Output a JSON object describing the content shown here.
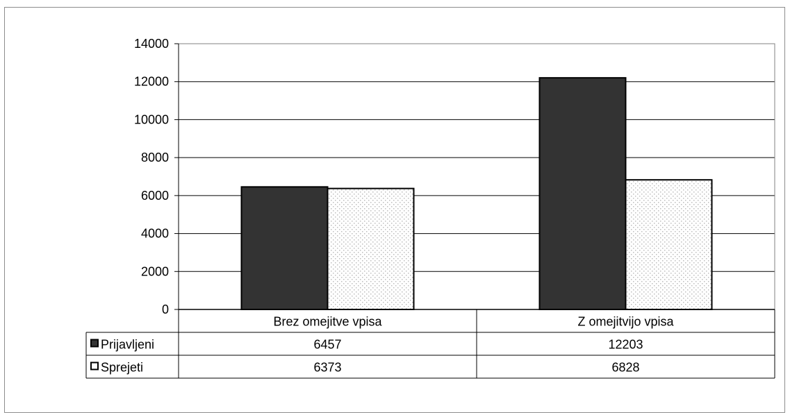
{
  "chart_data": {
    "type": "bar",
    "title": "",
    "xlabel": "",
    "ylabel": "",
    "ylim": [
      0,
      14000
    ],
    "y_ticks": [
      "0",
      "2000",
      "4000",
      "6000",
      "8000",
      "10000",
      "12000",
      "14000"
    ],
    "categories": [
      "Brez omejitve vpisa",
      "Z omejitvijo vpisa"
    ],
    "series": [
      {
        "name": "Prijavljeni",
        "values": [
          6457,
          12203
        ],
        "value_labels": [
          "6457",
          "12203"
        ],
        "color": "#333333",
        "pattern": "solid"
      },
      {
        "name": "Sprejeti",
        "values": [
          6373,
          6828
        ],
        "value_labels": [
          "6373",
          "6828"
        ],
        "color": "#ffffff",
        "pattern": "dotted"
      }
    ],
    "grid": true,
    "legend": "data-table-left",
    "data_table": true
  },
  "colors": {
    "gridline": "#000000",
    "plot_border": "#808080",
    "bar_outline": "#000000",
    "dot_pattern": "#bdbdbd"
  }
}
